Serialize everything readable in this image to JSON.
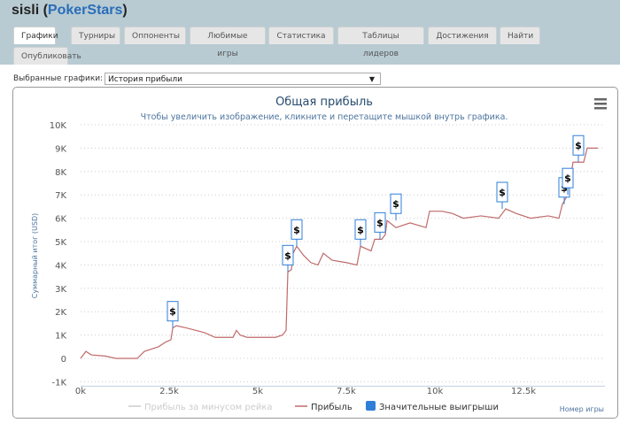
{
  "header": {
    "user": "sisli",
    "site": "PokerStars"
  },
  "tabs": [
    "Графики",
    "Турниры",
    "Оппоненты",
    "Любимые игры",
    "Статистика",
    "Таблицы лидеров",
    "Достижения",
    "Найти",
    "Опубликовать"
  ],
  "selector": {
    "label": "Выбранные графики:",
    "value": "История прибыли"
  },
  "menu_icon": "hamburger-icon",
  "chart_data": {
    "type": "line",
    "title": "Общая прибыль",
    "subtitle": "Чтобы увеличить изображение, кликните и перетащите мышкой внутрь графика.",
    "ylabel": "Суммарный итог (USD)",
    "xlabel": "Номер игры",
    "xlim": [
      0,
      14700
    ],
    "ylim": [
      -1000,
      10000
    ],
    "xticks": [
      "0k",
      "2.5k",
      "5k",
      "7.5k",
      "10k",
      "12.5k"
    ],
    "yticks": [
      "-1K",
      "0",
      "1K",
      "2K",
      "3K",
      "4K",
      "5K",
      "6K",
      "7K",
      "8K",
      "9K",
      "10K"
    ],
    "grid": true,
    "legend": [
      "Прибыль за минусом рейка",
      "Прибыль",
      "Значительные выигрыши"
    ],
    "legend_position": "bottom",
    "colors": {
      "profit": "#c06a6a",
      "rake": "#cccccc",
      "flags": "#2f7ed8"
    },
    "series": [
      {
        "name": "Прибыль",
        "x": [
          0,
          150,
          300,
          700,
          1000,
          1600,
          1800,
          2000,
          2200,
          2400,
          2550,
          2600,
          2700,
          3000,
          3500,
          3800,
          4300,
          4400,
          4500,
          4700,
          5500,
          5700,
          5800,
          5850,
          5950,
          6000,
          6100,
          6300,
          6500,
          6700,
          6850,
          7100,
          7500,
          7800,
          7900,
          8200,
          8300,
          8500,
          8600,
          8650,
          8900,
          9300,
          9750,
          9850,
          10200,
          10500,
          10800,
          11300,
          11800,
          12000,
          12300,
          12700,
          13200,
          13500,
          13600,
          13750,
          13900,
          14200,
          14300,
          14600
        ],
        "y": [
          0,
          300,
          150,
          100,
          0,
          0,
          300,
          400,
          500,
          700,
          800,
          1300,
          1400,
          1300,
          1100,
          900,
          900,
          1200,
          1000,
          900,
          900,
          1000,
          1200,
          3700,
          3800,
          4500,
          4800,
          4400,
          4100,
          4000,
          4500,
          4200,
          4100,
          4000,
          4800,
          4600,
          5100,
          5100,
          5300,
          5900,
          5600,
          5800,
          5600,
          6300,
          6300,
          6200,
          6000,
          6100,
          6000,
          6400,
          6200,
          6000,
          6100,
          6000,
          6600,
          7000,
          8400,
          8400,
          9000,
          9000
        ]
      }
    ],
    "flags": {
      "label": "$",
      "x": [
        2600,
        5850,
        6100,
        7900,
        8450,
        8900,
        11900,
        13650,
        13750,
        14050
      ],
      "y": [
        1300,
        3700,
        4800,
        4800,
        5100,
        5900,
        6400,
        6600,
        7000,
        8400
      ]
    }
  }
}
